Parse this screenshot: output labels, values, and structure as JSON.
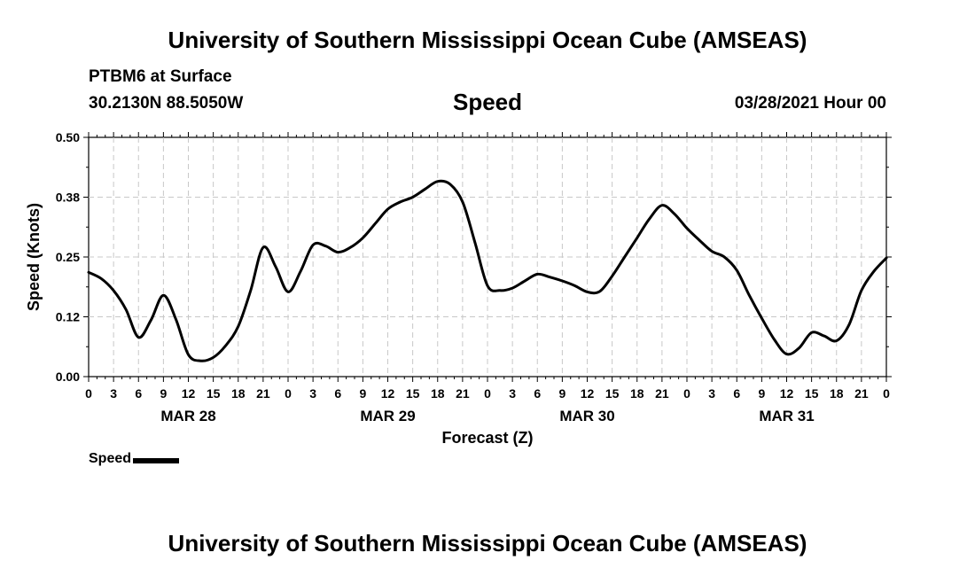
{
  "header": {
    "title": "University of Southern Mississippi Ocean Cube (AMSEAS)",
    "station": "PTBM6 at Surface",
    "coords": "30.2130N  88.5050W",
    "datetime": "03/28/2021 Hour 00"
  },
  "footer": {
    "title": "University of Southern Mississippi Ocean Cube (AMSEAS)"
  },
  "legend": {
    "label": "Speed"
  },
  "colors": {
    "line": "#000000",
    "grid": "#c8c8c8",
    "axis": "#000000"
  },
  "chart_data": {
    "type": "line",
    "title": "Speed",
    "xlabel": "Forecast (Z)",
    "ylabel": "Speed (Knots)",
    "xlim": [
      0,
      96
    ],
    "ylim": [
      0,
      0.5
    ],
    "yticks": [
      0.0,
      0.125,
      0.25,
      0.375,
      0.5
    ],
    "ytick_labels": [
      "0.00",
      "0.12",
      "0.25",
      "0.38",
      "0.50"
    ],
    "xtick_hours": [
      0,
      3,
      6,
      9,
      12,
      15,
      18,
      21,
      24,
      27,
      30,
      33,
      36,
      39,
      42,
      45,
      48,
      51,
      54,
      57,
      60,
      63,
      66,
      69,
      72,
      75,
      78,
      81,
      84,
      87,
      90,
      93,
      96
    ],
    "xtick_labels": [
      "0",
      "3",
      "6",
      "9",
      "12",
      "15",
      "18",
      "21",
      "0",
      "3",
      "6",
      "9",
      "12",
      "15",
      "18",
      "21",
      "0",
      "3",
      "6",
      "9",
      "12",
      "15",
      "18",
      "21",
      "0",
      "3",
      "6",
      "9",
      "12",
      "15",
      "18",
      "21",
      "0"
    ],
    "day_labels": [
      {
        "hour": 12,
        "label": "MAR 28"
      },
      {
        "hour": 36,
        "label": "MAR 29"
      },
      {
        "hour": 60,
        "label": "MAR 30"
      },
      {
        "hour": 84,
        "label": "MAR 31"
      }
    ],
    "grid": true,
    "series": [
      {
        "name": "Speed",
        "x": [
          0,
          1.5,
          3,
          4.5,
          6,
          7.5,
          9,
          10.5,
          12,
          13.5,
          15,
          16.5,
          18,
          19.5,
          21,
          22.5,
          24,
          25.5,
          27,
          28.5,
          30,
          31.5,
          33,
          34.5,
          36,
          37.5,
          39,
          40.5,
          42,
          43.5,
          45,
          46.5,
          48,
          49.5,
          51,
          52.5,
          54,
          55.5,
          57,
          58.5,
          60,
          61.5,
          63,
          64.5,
          66,
          67.5,
          69,
          70.5,
          72,
          73.5,
          75,
          76.5,
          78,
          79.5,
          81,
          82.5,
          84,
          85.5,
          87,
          88.5,
          90,
          91.5,
          93,
          94.5,
          96
        ],
        "values": [
          0.218,
          0.205,
          0.18,
          0.14,
          0.082,
          0.118,
          0.17,
          0.12,
          0.046,
          0.033,
          0.04,
          0.065,
          0.105,
          0.18,
          0.27,
          0.23,
          0.177,
          0.22,
          0.275,
          0.273,
          0.26,
          0.27,
          0.29,
          0.32,
          0.35,
          0.365,
          0.375,
          0.392,
          0.408,
          0.402,
          0.365,
          0.28,
          0.19,
          0.18,
          0.185,
          0.2,
          0.214,
          0.208,
          0.2,
          0.19,
          0.177,
          0.178,
          0.21,
          0.25,
          0.29,
          0.33,
          0.358,
          0.34,
          0.31,
          0.285,
          0.262,
          0.25,
          0.222,
          0.17,
          0.122,
          0.078,
          0.047,
          0.06,
          0.092,
          0.085,
          0.075,
          0.108,
          0.18,
          0.22,
          0.248
        ]
      }
    ]
  }
}
